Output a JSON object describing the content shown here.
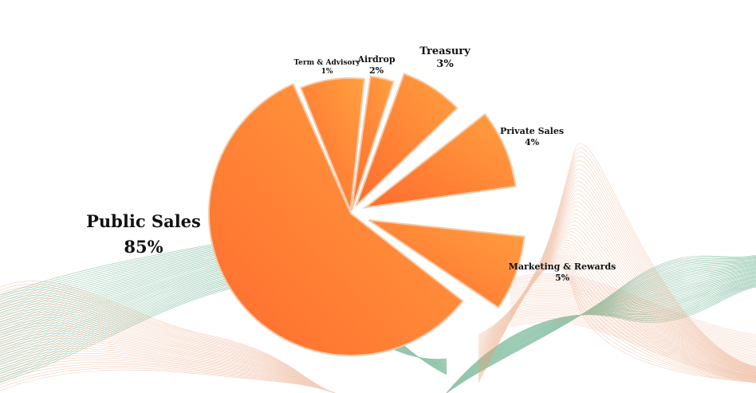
{
  "chart_data": {
    "type": "pie",
    "title": "",
    "slices": [
      {
        "label": "Public Sales",
        "percent_label": "85%",
        "value": 85
      },
      {
        "label": "Term & Advisory",
        "percent_label": "1%",
        "value": 1
      },
      {
        "label": "Airdrop",
        "percent_label": "2%",
        "value": 2
      },
      {
        "label": "Treasury",
        "percent_label": "3%",
        "value": 3
      },
      {
        "label": "Private Sales",
        "percent_label": "4%",
        "value": 4
      },
      {
        "label": "Marketing & Rewards",
        "percent_label": "5%",
        "value": 5
      }
    ],
    "colors": {
      "slice_light": "#ffa040",
      "slice_dark": "#ff6c2e",
      "slice_edge": "#f4c9a8"
    },
    "background_wave_colors": [
      "#3d9a6c",
      "#e8a07a"
    ]
  }
}
